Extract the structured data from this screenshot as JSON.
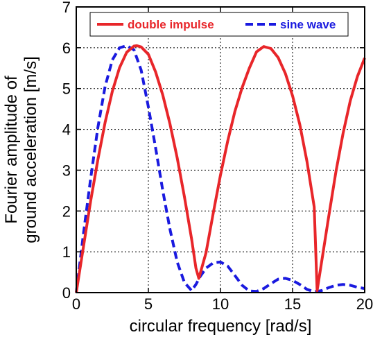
{
  "chart_data": {
    "type": "line",
    "title": "",
    "xlabel": "circular frequency [rad/s]",
    "ylabel_lines": [
      "Fourier amplitude of",
      "ground acceleration [m/s]"
    ],
    "xlim": [
      0,
      20
    ],
    "ylim": [
      0,
      7
    ],
    "xticks": [
      0,
      5,
      10,
      15,
      20
    ],
    "yticks": [
      0,
      1,
      2,
      3,
      4,
      5,
      6,
      7
    ],
    "grid": true,
    "legend_position": "top",
    "series": [
      {
        "name": "double impulse",
        "color": "#e8262a",
        "style": "solid",
        "x": [
          0,
          0.5,
          1,
          1.5,
          2,
          2.5,
          3,
          3.5,
          4,
          4.2,
          4.5,
          5,
          5.5,
          6,
          6.5,
          7,
          7.5,
          8,
          8.3,
          8.5,
          9,
          9.5,
          10,
          10.5,
          11,
          11.5,
          12,
          12.5,
          13,
          13.5,
          14,
          14.5,
          15,
          15.5,
          16,
          16.5,
          16.7,
          17,
          17.5,
          18,
          18.5,
          19,
          19.5,
          20
        ],
        "y": [
          0,
          1.13,
          2.25,
          3.26,
          4.17,
          4.93,
          5.51,
          5.89,
          6.04,
          6.05,
          6.02,
          5.84,
          5.41,
          4.84,
          4.13,
          3.3,
          2.35,
          1.31,
          0.6,
          0.35,
          0.98,
          1.95,
          2.88,
          3.71,
          4.44,
          5.02,
          5.5,
          5.9,
          6.03,
          5.98,
          5.76,
          5.37,
          4.82,
          4.12,
          3.21,
          2.1,
          0.05,
          0.72,
          1.85,
          2.95,
          3.9,
          4.7,
          5.3,
          5.75
        ]
      },
      {
        "name": "sine wave",
        "color": "#1a1adf",
        "style": "dashed",
        "x": [
          0,
          0.5,
          1,
          1.5,
          2,
          2.5,
          3,
          3.5,
          4,
          4.5,
          5,
          5.5,
          6,
          6.5,
          7,
          7.5,
          8,
          8.3,
          8.6,
          9,
          9.5,
          10,
          10.5,
          11,
          11.5,
          12,
          12.5,
          13,
          13.5,
          14,
          14.5,
          15,
          15.5,
          16,
          16.5,
          17,
          17.5,
          18,
          18.5,
          19,
          19.5,
          20
        ],
        "y": [
          0,
          1.45,
          2.8,
          4.05,
          5.05,
          5.7,
          6.0,
          6.05,
          5.95,
          5.45,
          4.55,
          3.55,
          2.5,
          1.55,
          0.75,
          0.25,
          0.05,
          0.2,
          0.4,
          0.6,
          0.73,
          0.75,
          0.65,
          0.42,
          0.18,
          0.04,
          0.03,
          0.1,
          0.22,
          0.33,
          0.35,
          0.3,
          0.2,
          0.08,
          0.02,
          0.05,
          0.12,
          0.18,
          0.2,
          0.18,
          0.13,
          0.1
        ]
      }
    ]
  }
}
